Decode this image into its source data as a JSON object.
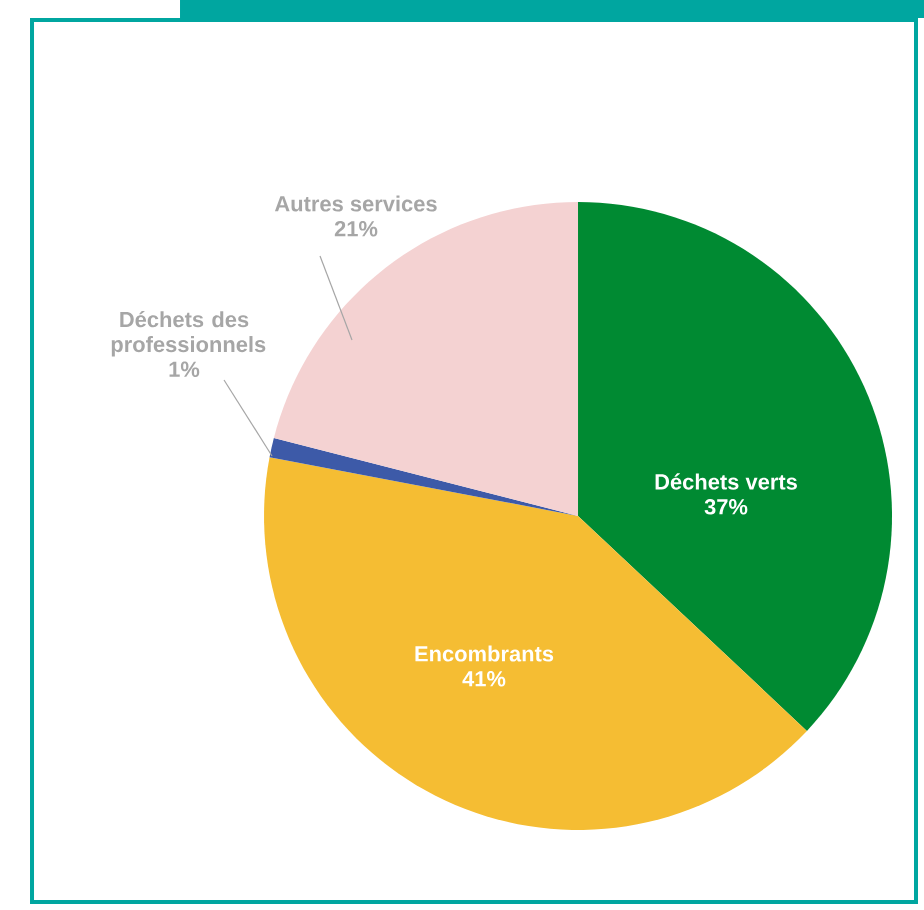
{
  "chart_data": {
    "type": "pie",
    "categories": [
      "Déchets verts",
      "Encombrants",
      "Déchets des professionnels",
      "Autres services"
    ],
    "values": [
      37,
      41,
      1,
      21
    ],
    "value_labels": [
      "37%",
      "41%",
      "1%",
      "21%"
    ],
    "colors": [
      "#008a32",
      "#f5bd33",
      "#3d5aa8",
      "#f4d2d2"
    ]
  }
}
